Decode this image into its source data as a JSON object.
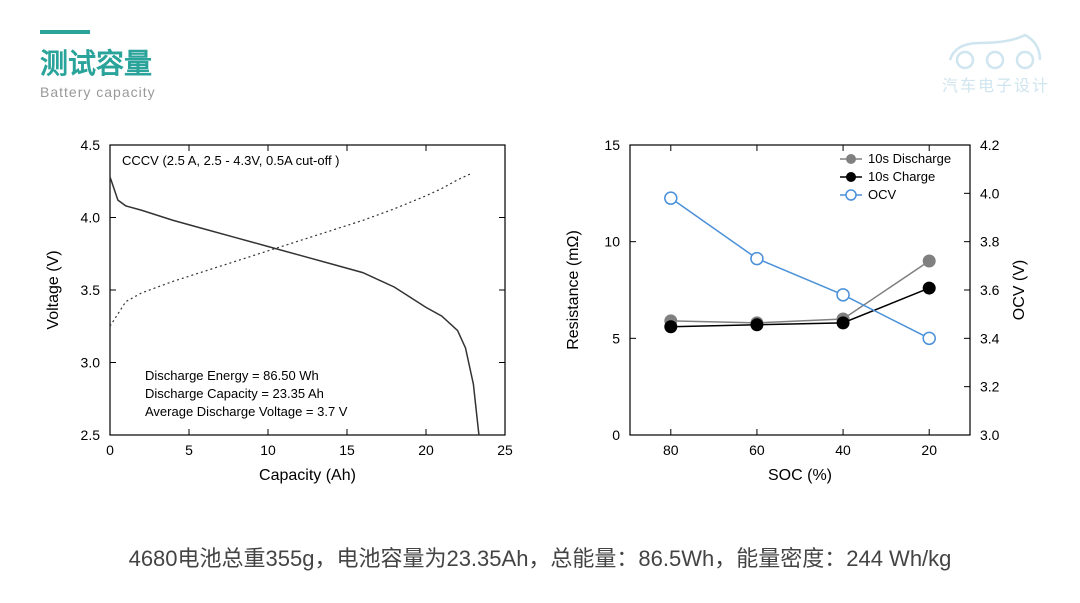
{
  "header": {
    "title": "测试容量",
    "subtitle": "Battery capacity"
  },
  "logo": {
    "text": "汽车电子设计",
    "color": "#cfe5ef"
  },
  "chart_left": {
    "type": "line",
    "title_annotation": "CCCV (2.5 A, 2.5 - 4.3V, 0.5A cut-off )",
    "xlabel": "Capacity (Ah)",
    "ylabel": "Voltage (V)",
    "xlim": [
      0,
      25
    ],
    "ylim": [
      2.5,
      4.5
    ],
    "xtick_step": 5,
    "ytick_step": 0.5,
    "axis_color": "#000000",
    "background_color": "#ffffff",
    "line_color": "#333333",
    "line_width": 1.5,
    "label_fontsize": 16,
    "tick_fontsize": 14,
    "anno_fontsize": 13,
    "text_lines": [
      "Discharge Energy = 86.50 Wh",
      "Discharge Capacity = 23.35 Ah",
      "Average Discharge Voltage = 3.7 V"
    ],
    "discharge_curve": {
      "x": [
        0,
        0.5,
        1,
        2,
        4,
        6,
        8,
        10,
        12,
        14,
        16,
        18,
        19,
        20,
        21,
        22,
        22.5,
        23,
        23.35
      ],
      "y": [
        4.28,
        4.12,
        4.08,
        4.05,
        3.98,
        3.92,
        3.86,
        3.8,
        3.74,
        3.68,
        3.62,
        3.52,
        3.45,
        3.38,
        3.32,
        3.22,
        3.1,
        2.85,
        2.5
      ]
    },
    "charge_curve": {
      "x": [
        0,
        1,
        2,
        4,
        6,
        8,
        10,
        12,
        14,
        16,
        18,
        20,
        21,
        22,
        22.8
      ],
      "y": [
        3.25,
        3.42,
        3.48,
        3.56,
        3.63,
        3.7,
        3.77,
        3.84,
        3.91,
        3.98,
        4.06,
        4.15,
        4.2,
        4.26,
        4.3
      ],
      "style": "dotted"
    }
  },
  "chart_right": {
    "type": "dual-axis-line",
    "xlabel": "SOC (%)",
    "ylabel_left": "Resistance (mΩ)",
    "ylabel_right": "OCV (V)",
    "xlim": [
      90,
      10
    ],
    "x_categories": [
      80,
      60,
      40,
      20
    ],
    "ylim_left": [
      0,
      15
    ],
    "ytick_step_left": 5,
    "ylim_right": [
      3.0,
      4.2
    ],
    "ytick_step_right": 0.2,
    "axis_color": "#000000",
    "background_color": "#ffffff",
    "label_fontsize": 16,
    "tick_fontsize": 14,
    "legend_fontsize": 13,
    "marker_size": 6,
    "line_width": 1.5,
    "series": {
      "discharge_10s": {
        "label": "10s Discharge",
        "color": "#808080",
        "marker": "circle-filled",
        "x": [
          80,
          60,
          40,
          20
        ],
        "y_left": [
          5.9,
          5.8,
          6.0,
          9.0
        ]
      },
      "charge_10s": {
        "label": "10s Charge",
        "color": "#000000",
        "marker": "circle-filled",
        "x": [
          80,
          60,
          40,
          20
        ],
        "y_left": [
          5.6,
          5.7,
          5.8,
          7.6
        ]
      },
      "ocv": {
        "label": "OCV",
        "color": "#4a90d9",
        "marker": "circle-open",
        "x": [
          80,
          60,
          40,
          20
        ],
        "y_right": [
          3.98,
          3.73,
          3.58,
          3.4
        ]
      }
    }
  },
  "footer": "4680电池总重355g，电池容量为23.35Ah，总能量：86.5Wh，能量密度：244 Wh/kg"
}
